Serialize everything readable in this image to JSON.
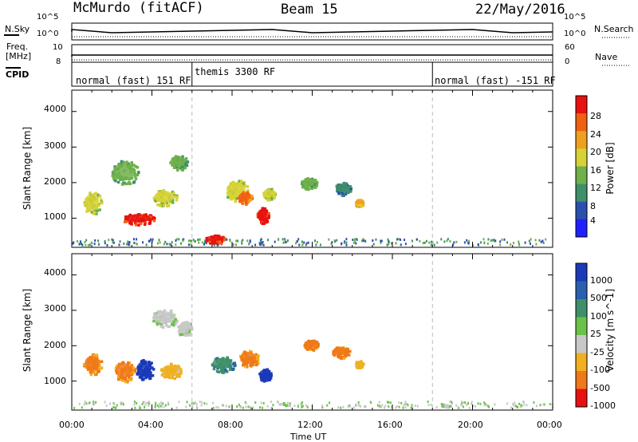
{
  "header": {
    "station": "McMurdo (fitACF)",
    "beam": "Beam 15",
    "date": "22/May/2016"
  },
  "panels": {
    "nsky_label": "N.Sky",
    "nsearch_label": "N.Search",
    "freq_label_1": "Freq.",
    "freq_label_2": "[MHz]",
    "nave_label": "Nave",
    "cpid_label": "CPID",
    "nsky_ticks": [
      "10^5",
      "10^0"
    ],
    "nsearch_ticks": [
      "10^5",
      "10^0"
    ],
    "freq_ticks": [
      "10",
      "8"
    ],
    "nave_ticks": [
      "60",
      "0"
    ],
    "cpid_segments": [
      "normal (fast) 151 RF",
      "themis 3300 RF",
      "normal (fast) -151 RF"
    ]
  },
  "chart_data": [
    {
      "type": "heatmap",
      "panel": "power",
      "ylabel": "Slant Range [km]",
      "yticks": [
        "4000",
        "3000",
        "2000",
        "1000"
      ],
      "ylim": [
        180,
        4600
      ],
      "xlim_hours": [
        0,
        24
      ],
      "colorbar_label": "Power [dB]",
      "colorbar_ticks": [
        "28",
        "24",
        "20",
        "16",
        "12",
        "8",
        "4"
      ],
      "colors": [
        "#2020ff",
        "#2a4fb0",
        "#3f8f6a",
        "#6fb04a",
        "#d7d236",
        "#f0a020",
        "#f06010",
        "#e81010"
      ],
      "blobs": [
        {
          "t": 1.0,
          "r": 1450,
          "dt": 0.9,
          "dr": 650,
          "level": 4
        },
        {
          "t": 3.3,
          "r": 1000,
          "dt": 1.6,
          "dr": 330,
          "level": 7
        },
        {
          "t": 4.6,
          "r": 1600,
          "dt": 1.2,
          "dr": 480,
          "level": 4
        },
        {
          "t": 2.6,
          "r": 2300,
          "dt": 1.4,
          "dr": 700,
          "level": 3
        },
        {
          "t": 5.3,
          "r": 2600,
          "dt": 0.9,
          "dr": 450,
          "level": 3
        },
        {
          "t": 7.1,
          "r": 430,
          "dt": 1.0,
          "dr": 230,
          "level": 7
        },
        {
          "t": 8.2,
          "r": 1800,
          "dt": 1.2,
          "dr": 600,
          "level": 4
        },
        {
          "t": 8.6,
          "r": 1600,
          "dt": 0.7,
          "dr": 350,
          "level": 6
        },
        {
          "t": 9.5,
          "r": 1100,
          "dt": 0.6,
          "dr": 450,
          "level": 7
        },
        {
          "t": 9.8,
          "r": 1700,
          "dt": 0.6,
          "dr": 350,
          "level": 4
        },
        {
          "t": 11.8,
          "r": 2000,
          "dt": 0.8,
          "dr": 320,
          "level": 3
        },
        {
          "t": 13.5,
          "r": 1850,
          "dt": 0.8,
          "dr": 360,
          "level": 2
        },
        {
          "t": 14.3,
          "r": 1450,
          "dt": 0.4,
          "dr": 200,
          "level": 5
        }
      ]
    },
    {
      "type": "heatmap",
      "panel": "velocity",
      "ylabel": "Slant Range [km]",
      "yticks": [
        "4000",
        "3000",
        "2000",
        "1000"
      ],
      "ylim": [
        180,
        4600
      ],
      "xlim_hours": [
        0,
        24
      ],
      "xticks": [
        "00:00",
        "04:00",
        "08:00",
        "12:00",
        "16:00",
        "20:00",
        "00:00"
      ],
      "xlabel": "Time UT",
      "colorbar_label": "Velocity [m s^-1]",
      "colorbar_ticks": [
        "1000",
        "500",
        "100",
        "25",
        "-25",
        "-100",
        "-500",
        "-1000"
      ],
      "colors": [
        "#1a3ab8",
        "#2a5fb0",
        "#3f8f6a",
        "#6bc24a",
        "#c8c8c8",
        "#f0b020",
        "#f07818",
        "#e81010"
      ],
      "blobs": [
        {
          "t": 1.0,
          "r": 1500,
          "dt": 0.9,
          "dr": 600,
          "level": 6
        },
        {
          "t": 2.6,
          "r": 1300,
          "dt": 1.0,
          "dr": 600,
          "level": 6
        },
        {
          "t": 3.6,
          "r": 1350,
          "dt": 0.9,
          "dr": 600,
          "level": 0
        },
        {
          "t": 4.6,
          "r": 2800,
          "dt": 1.3,
          "dr": 500,
          "level": 4
        },
        {
          "t": 5.6,
          "r": 2500,
          "dt": 0.7,
          "dr": 450,
          "level": 4
        },
        {
          "t": 4.9,
          "r": 1300,
          "dt": 1.0,
          "dr": 450,
          "level": 5
        },
        {
          "t": 7.5,
          "r": 1500,
          "dt": 1.2,
          "dr": 450,
          "level": 2
        },
        {
          "t": 8.8,
          "r": 1650,
          "dt": 1.0,
          "dr": 500,
          "level": 6
        },
        {
          "t": 9.6,
          "r": 1200,
          "dt": 0.6,
          "dr": 350,
          "level": 0
        },
        {
          "t": 11.9,
          "r": 2050,
          "dt": 0.7,
          "dr": 300,
          "level": 6
        },
        {
          "t": 13.4,
          "r": 1850,
          "dt": 0.9,
          "dr": 350,
          "level": 6
        },
        {
          "t": 14.3,
          "r": 1500,
          "dt": 0.4,
          "dr": 200,
          "level": 5
        }
      ]
    }
  ]
}
